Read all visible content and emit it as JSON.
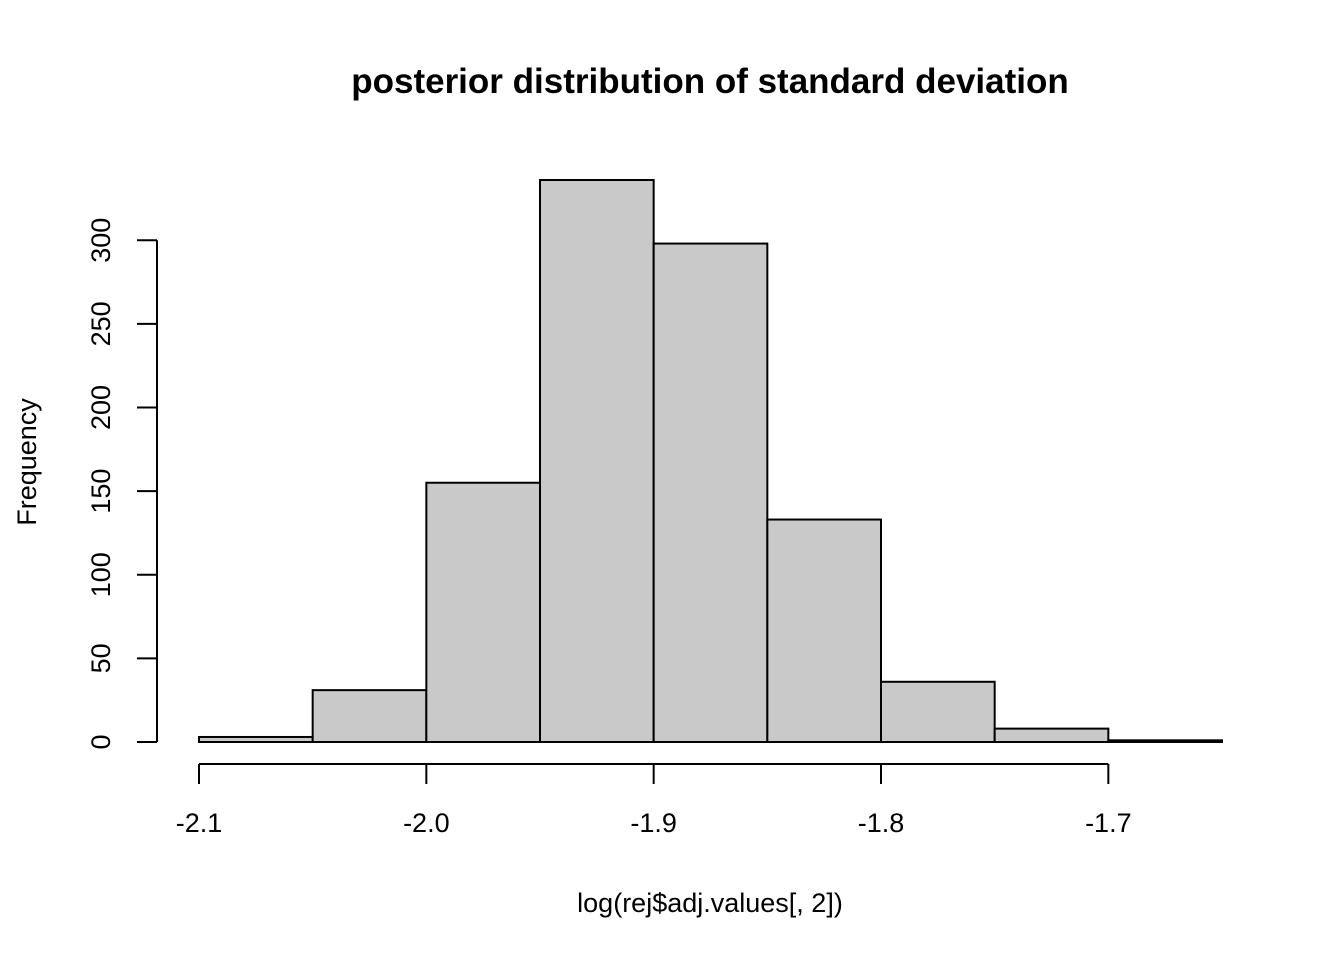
{
  "chart_data": {
    "type": "bar",
    "title": "posterior distribution of standard deviation",
    "xlabel": "log(rej$adj.values[, 2])",
    "ylabel": "Frequency",
    "bins": [
      {
        "from": -2.1,
        "to": -2.05,
        "count": 3
      },
      {
        "from": -2.05,
        "to": -2.0,
        "count": 31
      },
      {
        "from": -2.0,
        "to": -1.95,
        "count": 155
      },
      {
        "from": -1.95,
        "to": -1.9,
        "count": 336
      },
      {
        "from": -1.9,
        "to": -1.85,
        "count": 298
      },
      {
        "from": -1.85,
        "to": -1.8,
        "count": 133
      },
      {
        "from": -1.8,
        "to": -1.75,
        "count": 36
      },
      {
        "from": -1.75,
        "to": -1.7,
        "count": 8
      },
      {
        "from": -1.7,
        "to": -1.65,
        "count": 1
      }
    ],
    "x_ticks": [
      -2.1,
      -2.0,
      -1.9,
      -1.8,
      -1.7
    ],
    "x_tick_labels": [
      "-2.1",
      "-2.0",
      "-1.9",
      "-1.8",
      "-1.7"
    ],
    "y_ticks": [
      0,
      50,
      100,
      150,
      200,
      250,
      300
    ],
    "y_tick_labels": [
      "0",
      "50",
      "100",
      "150",
      "200",
      "250",
      "300"
    ],
    "xlim": [
      -2.1,
      -1.65
    ],
    "ylim": [
      0,
      336
    ],
    "grid": false,
    "colors": {
      "bar_fill": "#c9c9c9",
      "bar_stroke": "#000000"
    }
  }
}
